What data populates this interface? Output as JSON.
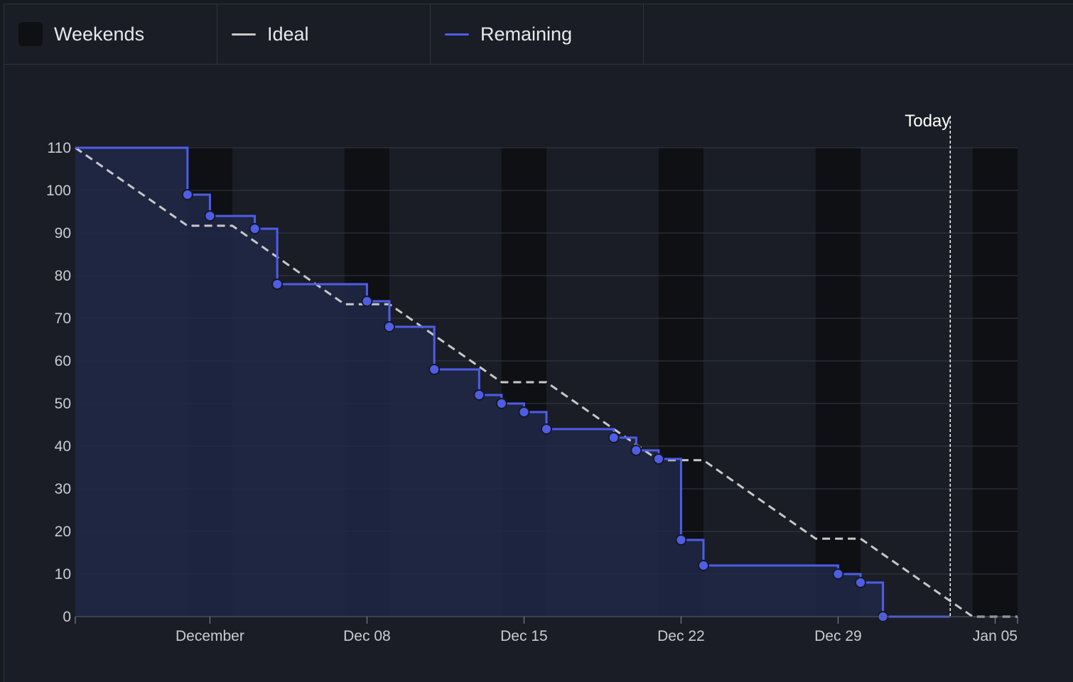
{
  "legend": {
    "weekends_label": "Weekends",
    "ideal_label": "Ideal",
    "remaining_label": "Remaining"
  },
  "colors": {
    "remaining": "#4f5de6",
    "ideal": "#c8c8c8",
    "weekend": "#0e1014",
    "area": "#202848"
  },
  "chart_data": {
    "type": "line",
    "y_ticks": [
      "0",
      "10",
      "20",
      "30",
      "40",
      "50",
      "60",
      "70",
      "80",
      "90",
      "100",
      "110"
    ],
    "ylim": [
      0,
      110
    ],
    "x_ticks": [
      {
        "label": "December",
        "date": "2024-12-01"
      },
      {
        "label": "Dec 08",
        "date": "2024-12-08"
      },
      {
        "label": "Dec 15",
        "date": "2024-12-15"
      },
      {
        "label": "Dec 22",
        "date": "2024-12-22"
      },
      {
        "label": "Dec 29",
        "date": "2024-12-29"
      },
      {
        "label": "Jan 05",
        "date": "2025-01-05"
      }
    ],
    "xlim": [
      "2024-11-25",
      "2025-01-06"
    ],
    "today": {
      "label": "Today",
      "date": "2025-01-03"
    },
    "weekends": [
      [
        "2024-11-30",
        "2024-12-02"
      ],
      [
        "2024-12-07",
        "2024-12-09"
      ],
      [
        "2024-12-14",
        "2024-12-16"
      ],
      [
        "2024-12-21",
        "2024-12-23"
      ],
      [
        "2024-12-28",
        "2024-12-30"
      ],
      [
        "2025-01-04",
        "2025-01-06"
      ]
    ],
    "series": [
      {
        "name": "Ideal",
        "style": "dashed",
        "points": [
          [
            "2024-11-25",
            110
          ],
          [
            "2024-11-30",
            91.7
          ],
          [
            "2024-12-01",
            91.7
          ],
          [
            "2024-12-02",
            91.7
          ],
          [
            "2024-12-07",
            73.3
          ],
          [
            "2024-12-08",
            73.3
          ],
          [
            "2024-12-09",
            73.3
          ],
          [
            "2024-12-14",
            55
          ],
          [
            "2024-12-15",
            55
          ],
          [
            "2024-12-16",
            55
          ],
          [
            "2024-12-21",
            36.7
          ],
          [
            "2024-12-22",
            36.7
          ],
          [
            "2024-12-23",
            36.7
          ],
          [
            "2024-12-28",
            18.3
          ],
          [
            "2024-12-29",
            18.3
          ],
          [
            "2024-12-30",
            18.3
          ],
          [
            "2025-01-04",
            0
          ],
          [
            "2025-01-06",
            0
          ]
        ]
      },
      {
        "name": "Remaining",
        "style": "step",
        "points": [
          [
            "2024-11-25",
            110
          ],
          [
            "2024-11-30",
            99
          ],
          [
            "2024-12-01",
            94
          ],
          [
            "2024-12-03",
            91
          ],
          [
            "2024-12-04",
            78
          ],
          [
            "2024-12-08",
            74
          ],
          [
            "2024-12-09",
            68
          ],
          [
            "2024-12-11",
            58
          ],
          [
            "2024-12-13",
            52
          ],
          [
            "2024-12-14",
            50
          ],
          [
            "2024-12-15",
            48
          ],
          [
            "2024-12-16",
            44
          ],
          [
            "2024-12-19",
            42
          ],
          [
            "2024-12-20",
            39
          ],
          [
            "2024-12-21",
            37
          ],
          [
            "2024-12-22",
            18
          ],
          [
            "2024-12-23",
            12
          ],
          [
            "2024-12-29",
            10
          ],
          [
            "2024-12-30",
            8
          ],
          [
            "2024-12-31",
            0
          ],
          [
            "2025-01-03",
            0
          ]
        ]
      }
    ]
  }
}
